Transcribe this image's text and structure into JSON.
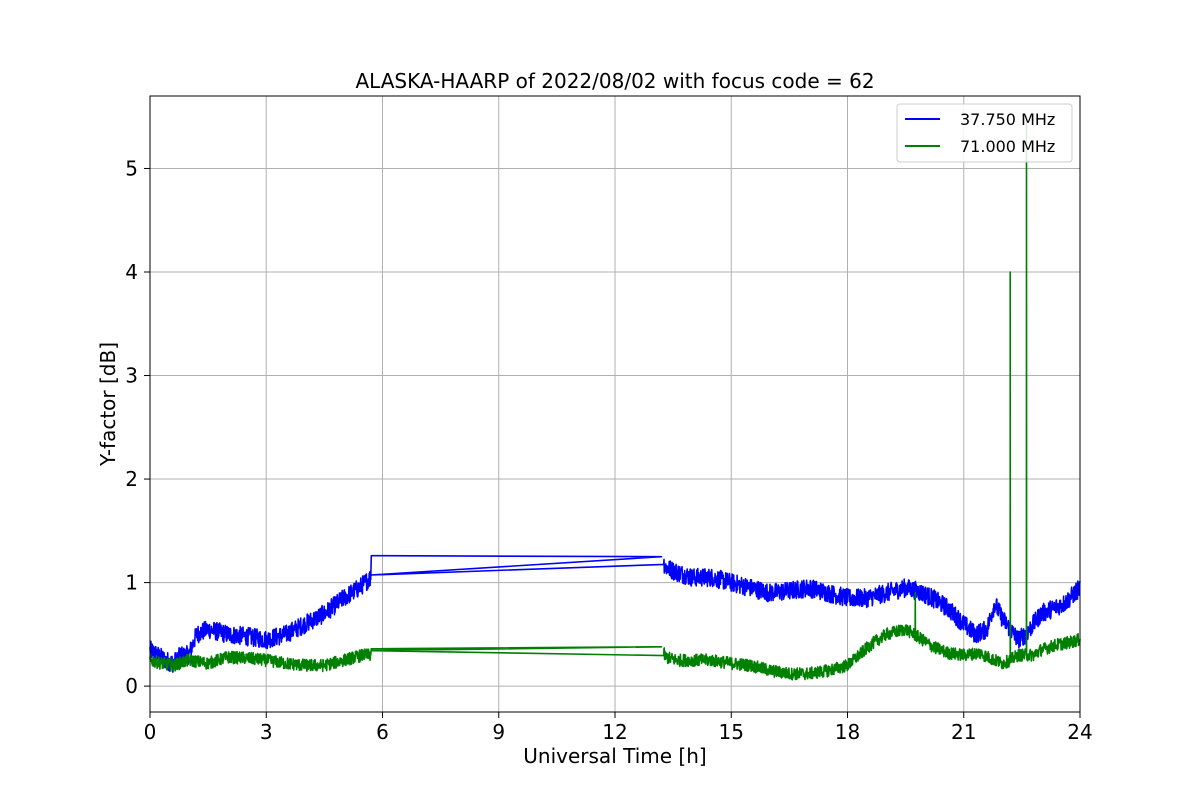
{
  "chart_data": {
    "type": "line",
    "title": "ALASKA-HAARP of 2022/08/02 with focus code = 62",
    "xlabel": "Universal Time [h]",
    "ylabel": "Y-factor [dB]",
    "xlim": [
      0,
      24
    ],
    "ylim": [
      -0.25,
      5.7
    ],
    "xticks": [
      0,
      3,
      6,
      9,
      12,
      15,
      18,
      21,
      24
    ],
    "yticks": [
      0,
      1,
      2,
      3,
      4,
      5
    ],
    "grid": true,
    "legend_position": "top-right",
    "series": [
      {
        "name": "37.750 MHz",
        "color": "#0000ff",
        "x": [
          0.0,
          0.2,
          0.4,
          0.6,
          0.8,
          1.0,
          1.2,
          1.5,
          2.0,
          2.5,
          3.0,
          3.5,
          4.0,
          4.5,
          5.0,
          5.4,
          5.7,
          5.71,
          13.2,
          13.3,
          13.6,
          14.0,
          14.5,
          15.0,
          15.5,
          16.0,
          16.5,
          17.0,
          17.5,
          18.0,
          18.5,
          19.0,
          19.5,
          19.8,
          20.2,
          20.6,
          21.0,
          21.3,
          21.6,
          21.8,
          22.0,
          22.2,
          22.4,
          22.6,
          22.8,
          23.0,
          23.3,
          23.6,
          24.0
        ],
        "y": [
          0.35,
          0.3,
          0.25,
          0.22,
          0.3,
          0.3,
          0.5,
          0.55,
          0.5,
          0.48,
          0.45,
          0.5,
          0.6,
          0.7,
          0.85,
          0.95,
          1.05,
          1.26,
          1.25,
          1.15,
          1.1,
          1.05,
          1.05,
          1.0,
          0.95,
          0.9,
          0.92,
          0.95,
          0.9,
          0.85,
          0.85,
          0.9,
          0.95,
          0.92,
          0.85,
          0.75,
          0.6,
          0.5,
          0.55,
          0.8,
          0.65,
          0.55,
          0.45,
          0.5,
          0.6,
          0.7,
          0.75,
          0.8,
          0.95
        ],
        "noise": 0.09
      },
      {
        "name": "71.000 MHz",
        "color": "#008000",
        "x": [
          0.0,
          0.3,
          0.6,
          1.0,
          1.5,
          2.0,
          2.5,
          3.0,
          3.5,
          4.0,
          4.5,
          5.0,
          5.5,
          5.7,
          5.71,
          13.2,
          13.3,
          13.6,
          14.0,
          14.5,
          15.0,
          15.5,
          16.0,
          16.5,
          17.0,
          17.5,
          18.0,
          18.3,
          18.6,
          19.0,
          19.5,
          19.8,
          20.2,
          20.6,
          21.0,
          21.4,
          21.8,
          22.0,
          22.2,
          22.4,
          22.6,
          22.8,
          23.0,
          23.4,
          23.7,
          24.0
        ],
        "y": [
          0.25,
          0.22,
          0.2,
          0.25,
          0.22,
          0.28,
          0.27,
          0.25,
          0.22,
          0.2,
          0.2,
          0.25,
          0.3,
          0.3,
          0.36,
          0.38,
          0.28,
          0.25,
          0.25,
          0.25,
          0.22,
          0.2,
          0.15,
          0.12,
          0.12,
          0.15,
          0.2,
          0.3,
          0.4,
          0.5,
          0.55,
          0.48,
          0.38,
          0.32,
          0.3,
          0.32,
          0.25,
          0.22,
          0.25,
          0.3,
          0.3,
          0.3,
          0.35,
          0.4,
          0.42,
          0.45
        ],
        "noise": 0.06,
        "spikes": [
          {
            "x": 19.75,
            "y": 0.9
          },
          {
            "x": 22.2,
            "y": 4.0
          },
          {
            "x": 22.62,
            "y": 5.5
          }
        ]
      }
    ]
  }
}
